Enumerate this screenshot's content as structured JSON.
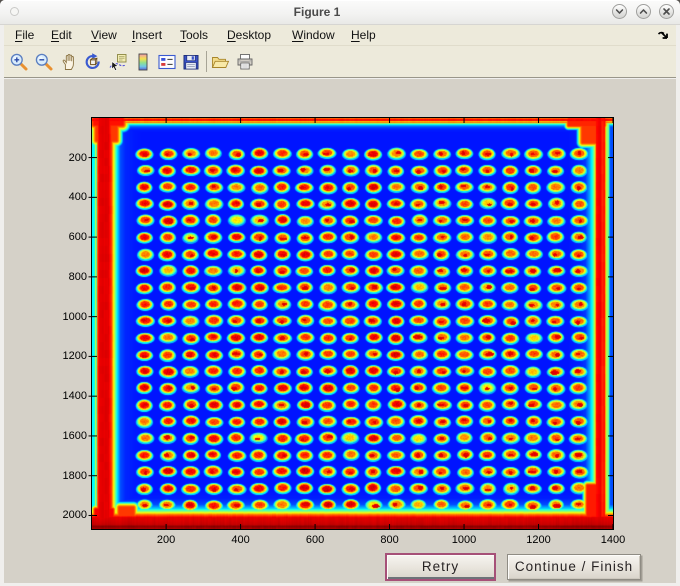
{
  "window": {
    "title": "Figure 1",
    "controls": {
      "minimize": "chevron-down",
      "maximize": "chevron-up",
      "close": "x"
    }
  },
  "menu_bar": {
    "items": [
      {
        "label": "File",
        "mnemonic": "F",
        "rest": "ile"
      },
      {
        "label": "Edit",
        "mnemonic": "E",
        "rest": "dit"
      },
      {
        "label": "View",
        "mnemonic": "V",
        "rest": "iew"
      },
      {
        "label": "Insert",
        "mnemonic": "I",
        "rest": "nsert"
      },
      {
        "label": "Tools",
        "mnemonic": "T",
        "rest": "ools"
      },
      {
        "label": "Desktop",
        "mnemonic": "D",
        "rest": "esktop"
      },
      {
        "label": "Window",
        "mnemonic": "W",
        "rest": "indow"
      },
      {
        "label": "Help",
        "mnemonic": "H",
        "rest": "elp"
      }
    ]
  },
  "toolbar": {
    "icons": [
      "zoom-in",
      "zoom-out",
      "pan-hand",
      "rotate-3d",
      "data-cursor",
      "insert-colorbar",
      "insert-legend",
      "save",
      "open-file",
      "print"
    ]
  },
  "plot": {
    "type": "heatmap-image",
    "description": "Microplate scan image rendered with jet colormap: blue plate interior with red glowing frame and a 20 x 22 grid of spot wells (cyan halo, yellow ring, red core)",
    "colormap": "jet",
    "x_ticks": [
      200,
      400,
      600,
      800,
      1000,
      1200,
      1400
    ],
    "y_ticks": [
      200,
      400,
      600,
      800,
      1000,
      1200,
      1400,
      1600,
      1800,
      2000
    ],
    "xlim": [
      1,
      1400
    ],
    "ylim": [
      1,
      2068
    ],
    "grid_cols": 20,
    "grid_rows": 22
  },
  "buttons": {
    "retry": "Retry",
    "continue": "Continue / Finish"
  },
  "colors": {
    "menu_bg": "#edeadb",
    "figure_bg": "#d5d1c8",
    "retry_focus_border": "#a65078",
    "interior_blue": "#0010e0"
  }
}
